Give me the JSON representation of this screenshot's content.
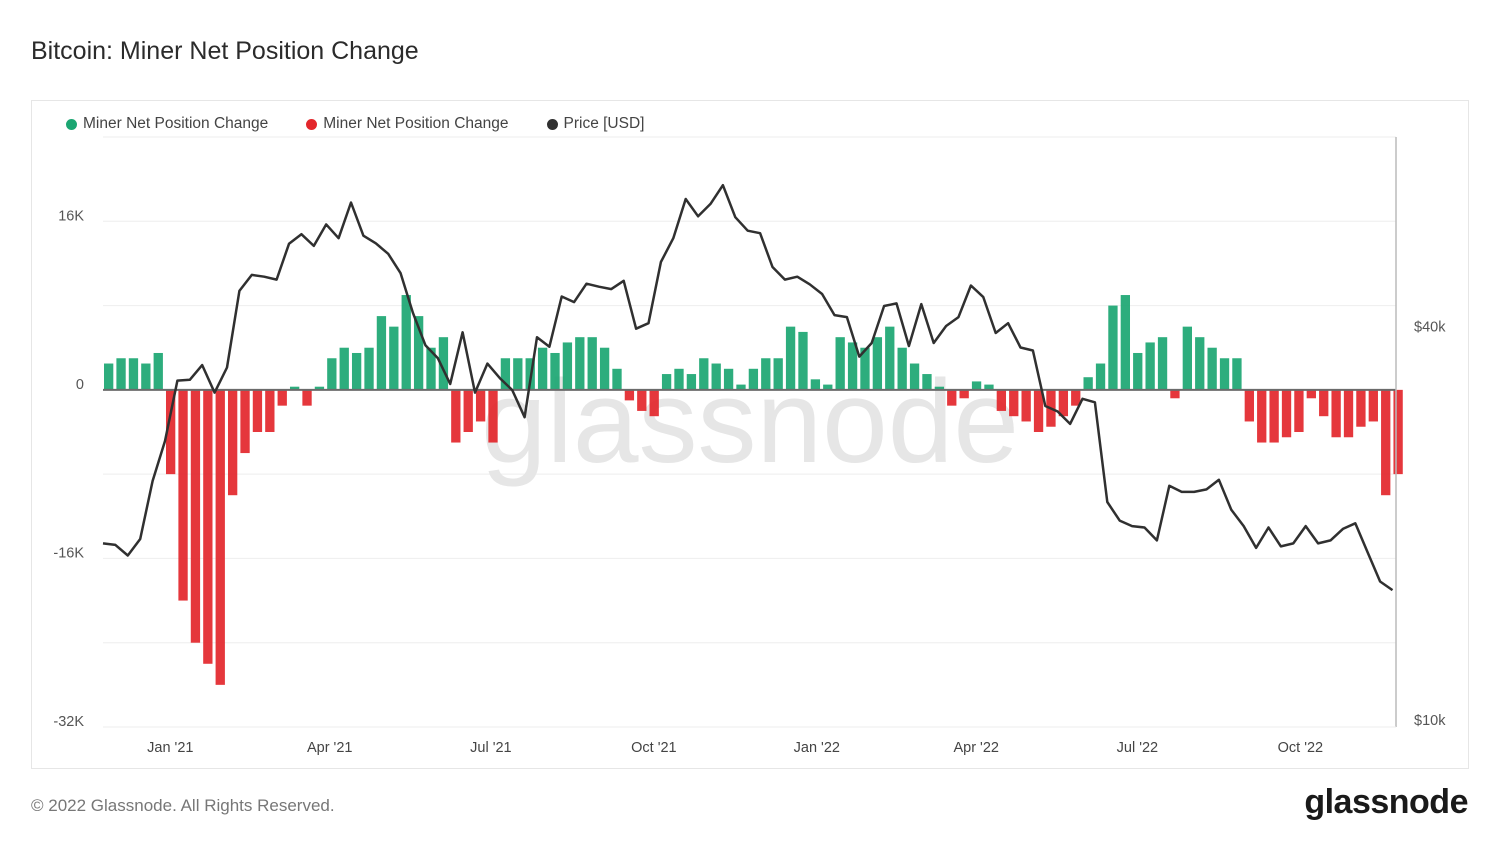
{
  "title": "Bitcoin: Miner Net Position Change",
  "footer": "© 2022 Glassnode. All Rights Reserved.",
  "logo": "glassnode",
  "watermark": "glassnode",
  "colors": {
    "positive": "#1ba672",
    "negative": "#e3262b",
    "price": "#303030",
    "zero_line": "#6b6b6b",
    "grid": "#eeeeee"
  },
  "legend": [
    {
      "label": "Miner Net Position Change",
      "color": "#1ba672"
    },
    {
      "label": "Miner Net Position Change",
      "color": "#e3262b"
    },
    {
      "label": "Price [USD]",
      "color": "#303030"
    }
  ],
  "chart_data": {
    "type": "bar+line",
    "title": "Bitcoin: Miner Net Position Change",
    "xlim": [
      "2020-11-24",
      "2022-11-24"
    ],
    "x_ticks": [
      {
        "date": "2021-01-01",
        "label": "Jan '21"
      },
      {
        "date": "2021-04-01",
        "label": "Apr '21"
      },
      {
        "date": "2021-07-01",
        "label": "Jul '21"
      },
      {
        "date": "2021-10-01",
        "label": "Oct '21"
      },
      {
        "date": "2022-01-01",
        "label": "Jan '22"
      },
      {
        "date": "2022-04-01",
        "label": "Apr '22"
      },
      {
        "date": "2022-07-01",
        "label": "Jul '22"
      },
      {
        "date": "2022-10-01",
        "label": "Oct '22"
      }
    ],
    "y_left": {
      "lim": [
        -32000,
        24000
      ],
      "grid_step": 8000,
      "ticks": [
        {
          "value": 16000,
          "label": "16K"
        },
        {
          "value": 0,
          "label": "0"
        },
        {
          "value": -16000,
          "label": "-16K"
        },
        {
          "value": -32000,
          "label": "-32K"
        }
      ]
    },
    "y_right": {
      "scale": "log",
      "lim": [
        10000,
        80000
      ],
      "ticks": [
        {
          "value": 40000,
          "label": "$40k"
        },
        {
          "value": 10000,
          "label": "$10k"
        }
      ]
    },
    "grid": true,
    "legend_position": "top-left",
    "x": [
      "2020-11-24",
      "2020-12-01",
      "2020-12-08",
      "2020-12-15",
      "2020-12-22",
      "2020-12-29",
      "2021-01-05",
      "2021-01-12",
      "2021-01-19",
      "2021-01-26",
      "2021-02-02",
      "2021-02-09",
      "2021-02-16",
      "2021-02-23",
      "2021-03-02",
      "2021-03-09",
      "2021-03-16",
      "2021-03-23",
      "2021-03-30",
      "2021-04-06",
      "2021-04-13",
      "2021-04-20",
      "2021-04-27",
      "2021-05-04",
      "2021-05-11",
      "2021-05-18",
      "2021-05-25",
      "2021-06-01",
      "2021-06-08",
      "2021-06-15",
      "2021-06-22",
      "2021-06-29",
      "2021-07-06",
      "2021-07-13",
      "2021-07-20",
      "2021-07-27",
      "2021-08-03",
      "2021-08-10",
      "2021-08-17",
      "2021-08-24",
      "2021-08-31",
      "2021-09-07",
      "2021-09-14",
      "2021-09-21",
      "2021-09-28",
      "2021-10-05",
      "2021-10-12",
      "2021-10-19",
      "2021-10-26",
      "2021-11-02",
      "2021-11-09",
      "2021-11-16",
      "2021-11-23",
      "2021-11-30",
      "2021-12-07",
      "2021-12-14",
      "2021-12-21",
      "2021-12-28",
      "2022-01-04",
      "2022-01-11",
      "2022-01-18",
      "2022-01-25",
      "2022-02-01",
      "2022-02-08",
      "2022-02-15",
      "2022-02-22",
      "2022-03-01",
      "2022-03-08",
      "2022-03-15",
      "2022-03-22",
      "2022-03-29",
      "2022-04-05",
      "2022-04-12",
      "2022-04-19",
      "2022-04-26",
      "2022-05-03",
      "2022-05-10",
      "2022-05-17",
      "2022-05-24",
      "2022-05-31",
      "2022-06-07",
      "2022-06-14",
      "2022-06-21",
      "2022-06-28",
      "2022-07-05",
      "2022-07-12",
      "2022-07-19",
      "2022-07-26",
      "2022-08-02",
      "2022-08-09",
      "2022-08-16",
      "2022-08-23",
      "2022-08-30",
      "2022-09-06",
      "2022-09-13",
      "2022-09-20",
      "2022-09-27",
      "2022-10-04",
      "2022-10-11",
      "2022-10-18",
      "2022-10-25",
      "2022-11-01",
      "2022-11-08",
      "2022-11-15",
      "2022-11-22"
    ],
    "series": [
      {
        "name": "Miner Net Position Change",
        "axis": "left",
        "kind": "bar",
        "values": [
          2500,
          3000,
          3000,
          2500,
          3500,
          -8000,
          -20000,
          -24000,
          -26000,
          -28000,
          -10000,
          -6000,
          -4000,
          -4000,
          -1500,
          300,
          -1500,
          300,
          3000,
          4000,
          3500,
          4000,
          7000,
          6000,
          9000,
          7000,
          4000,
          5000,
          -5000,
          -4000,
          -3000,
          -5000,
          3000,
          3000,
          3000,
          4000,
          3500,
          4500,
          5000,
          5000,
          4000,
          2000,
          -1000,
          -2000,
          -2500,
          1500,
          2000,
          1500,
          3000,
          2500,
          2000,
          500,
          2000,
          3000,
          3000,
          6000,
          5500,
          1000,
          500,
          5000,
          4500,
          4000,
          5000,
          6000,
          4000,
          2500,
          1500,
          300,
          -1500,
          -800,
          800,
          500,
          -2000,
          -2500,
          -3000,
          -4000,
          -3500,
          -2500,
          -1500,
          1200,
          2500,
          8000,
          9000,
          3500,
          4500,
          5000,
          -800,
          6000,
          5000,
          4000,
          3000,
          3000,
          -3000,
          -5000,
          -5000,
          -4500,
          -4000,
          -800,
          -2500,
          -4500,
          -4500,
          -3500,
          -3000,
          -10000,
          -8000
        ]
      },
      {
        "name": "Price [USD]",
        "axis": "right",
        "kind": "line",
        "values": [
          19100,
          19000,
          18300,
          19400,
          23800,
          27400,
          33900,
          34000,
          35800,
          32500,
          35500,
          46500,
          49200,
          48900,
          48400,
          54900,
          56800,
          54500,
          58800,
          56000,
          63500,
          56500,
          55000,
          53000,
          49500,
          43000,
          38400,
          36700,
          33500,
          40200,
          32500,
          36000,
          34200,
          32800,
          29800,
          39500,
          38200,
          45600,
          44700,
          47700,
          47200,
          46800,
          48200,
          40700,
          41500,
          51500,
          56000,
          64300,
          60500,
          63200,
          67500,
          60300,
          57500,
          57000,
          50600,
          48400,
          48900,
          47600,
          46000,
          42700,
          42400,
          36900,
          38700,
          44100,
          44500,
          38300,
          44400,
          38700,
          41100,
          42400,
          47400,
          45500,
          40100,
          41500,
          38100,
          37700,
          31000,
          30400,
          29100,
          31800,
          31400,
          22100,
          20700,
          20300,
          20200,
          19300,
          23400,
          22900,
          22900,
          23100,
          23900,
          21500,
          20300,
          18800,
          20200,
          18900,
          19100,
          20300,
          19100,
          19300,
          20100,
          20500,
          18500,
          16700,
          16200
        ]
      }
    ]
  }
}
